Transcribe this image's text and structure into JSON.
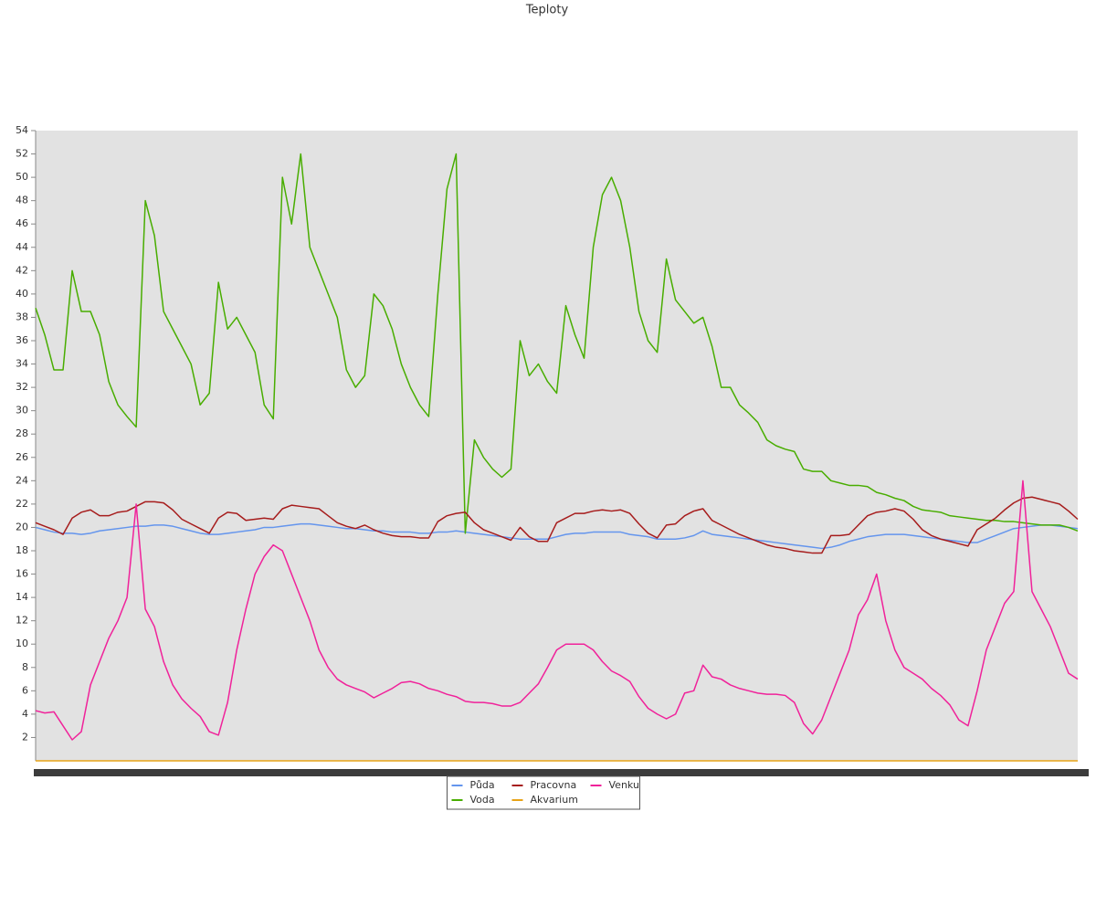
{
  "chart_data": {
    "type": "line",
    "title": "Teploty",
    "categories": [
      null,
      null,
      null,
      null,
      null,
      null,
      null,
      null,
      null,
      null,
      null,
      null,
      null,
      null,
      null,
      null,
      null,
      null,
      null,
      null,
      null,
      null,
      null,
      null,
      null,
      null,
      null,
      null,
      null,
      null,
      null,
      null,
      null,
      null,
      null,
      null,
      null,
      null,
      null,
      null,
      null,
      null,
      null,
      null,
      null,
      null,
      null,
      null,
      null,
      null,
      null,
      null,
      null,
      null,
      null,
      null,
      null,
      null,
      null,
      null,
      null,
      null,
      null,
      null,
      null,
      null,
      null,
      null,
      null,
      null,
      null,
      null,
      null,
      null,
      null,
      null,
      null,
      null,
      null,
      null,
      null,
      null,
      null,
      null,
      null,
      null,
      null,
      null,
      null,
      null,
      null,
      null,
      null,
      null,
      null,
      null,
      null,
      null,
      null,
      null,
      null,
      null,
      null,
      null,
      null,
      null,
      null,
      null,
      null,
      null,
      null,
      null,
      null,
      null,
      null
    ],
    "ylim": [
      0,
      54
    ],
    "yticks": [
      2,
      4,
      6,
      8,
      10,
      12,
      14,
      16,
      18,
      20,
      22,
      24,
      26,
      28,
      30,
      32,
      34,
      36,
      38,
      40,
      42,
      44,
      46,
      48,
      50,
      52,
      54
    ],
    "grid": false,
    "legend": "bottom",
    "series": [
      {
        "name": "Půda",
        "color": "#6495ed",
        "values": [
          20.0,
          19.8,
          19.6,
          19.5,
          19.5,
          19.4,
          19.5,
          19.7,
          19.8,
          19.9,
          20.0,
          20.1,
          20.1,
          20.2,
          20.2,
          20.1,
          19.9,
          19.7,
          19.5,
          19.4,
          19.4,
          19.5,
          19.6,
          19.7,
          19.8,
          20.0,
          20.0,
          20.1,
          20.2,
          20.3,
          20.3,
          20.2,
          20.1,
          20.0,
          19.9,
          19.9,
          19.8,
          19.7,
          19.7,
          19.6,
          19.6,
          19.6,
          19.5,
          19.5,
          19.6,
          19.6,
          19.7,
          19.6,
          19.5,
          19.4,
          19.3,
          19.2,
          19.1,
          19.0,
          19.0,
          19.0,
          19.0,
          19.2,
          19.4,
          19.5,
          19.5,
          19.6,
          19.6,
          19.6,
          19.6,
          19.4,
          19.3,
          19.2,
          19.0,
          19.0,
          19.0,
          19.1,
          19.3,
          19.7,
          19.4,
          19.3,
          19.2,
          19.1,
          19.0,
          18.9,
          18.8,
          18.7,
          18.6,
          18.5,
          18.4,
          18.3,
          18.2,
          18.3,
          18.5,
          18.8,
          19.0,
          19.2,
          19.3,
          19.4,
          19.4,
          19.4,
          19.3,
          19.2,
          19.1,
          19.0,
          18.9,
          18.8,
          18.7,
          18.7,
          19.0,
          19.3,
          19.6,
          19.9,
          20.0,
          20.1,
          20.2,
          20.2,
          20.1,
          20.0,
          19.9
        ]
      },
      {
        "name": "Voda",
        "color": "#48ad00",
        "values": [
          38.8,
          36.5,
          33.5,
          33.5,
          42,
          38.5,
          38.5,
          36.5,
          32.5,
          30.5,
          29.5,
          28.6,
          48,
          45,
          38.5,
          37,
          35.5,
          34,
          30.5,
          31.5,
          41,
          37,
          38,
          36.5,
          35,
          30.5,
          29.3,
          50,
          46,
          52,
          44,
          42,
          40,
          38,
          33.5,
          32,
          33,
          40,
          39,
          37,
          34,
          32,
          30.5,
          29.5,
          40,
          49,
          52,
          19.5,
          27.5,
          26,
          25,
          24.3,
          25,
          36,
          33,
          34,
          32.5,
          31.5,
          39,
          36.5,
          34.5,
          44,
          48.5,
          50,
          48,
          44,
          38.5,
          36,
          35,
          43,
          39.5,
          38.5,
          37.5,
          38,
          35.5,
          32,
          32,
          30.5,
          29.8,
          29,
          27.5,
          27,
          26.7,
          26.5,
          25,
          24.8,
          24.8,
          24,
          23.8,
          23.6,
          23.6,
          23.5,
          23,
          22.8,
          22.5,
          22.3,
          21.8,
          21.5,
          21.4,
          21.3,
          21,
          20.9,
          20.8,
          20.7,
          20.6,
          20.6,
          20.5,
          20.5,
          20.4,
          20.3,
          20.2,
          20.2,
          20.2,
          20,
          19.7
        ]
      },
      {
        "name": "Pracovna",
        "color": "#a61c1c",
        "values": [
          20.4,
          20.1,
          19.8,
          19.4,
          20.8,
          21.3,
          21.5,
          21,
          21,
          21.3,
          21.4,
          21.8,
          22.2,
          22.2,
          22.1,
          21.5,
          20.7,
          20.3,
          19.9,
          19.5,
          20.8,
          21.3,
          21.2,
          20.6,
          20.7,
          20.8,
          20.7,
          21.6,
          21.9,
          21.8,
          21.7,
          21.6,
          21,
          20.4,
          20.1,
          19.9,
          20.2,
          19.8,
          19.5,
          19.3,
          19.2,
          19.2,
          19.1,
          19.1,
          20.5,
          21,
          21.2,
          21.3,
          20.4,
          19.8,
          19.5,
          19.2,
          18.9,
          20,
          19.2,
          18.8,
          18.8,
          20.4,
          20.8,
          21.2,
          21.2,
          21.4,
          21.5,
          21.4,
          21.5,
          21.2,
          20.3,
          19.5,
          19.1,
          20.2,
          20.3,
          21,
          21.4,
          21.6,
          20.6,
          20.2,
          19.8,
          19.4,
          19.1,
          18.8,
          18.5,
          18.3,
          18.2,
          18,
          17.9,
          17.8,
          17.8,
          19.3,
          19.3,
          19.4,
          20.2,
          21,
          21.3,
          21.4,
          21.6,
          21.4,
          20.7,
          19.8,
          19.3,
          19,
          18.8,
          18.6,
          18.4,
          19.8,
          20.3,
          20.8,
          21.5,
          22.1,
          22.5,
          22.6,
          22.4,
          22.2,
          22,
          21.4,
          20.7
        ]
      },
      {
        "name": "Akvarium",
        "color": "#e8a317",
        "values": [
          0,
          0,
          0,
          0,
          0,
          0,
          0,
          0,
          0,
          0,
          0,
          0,
          0,
          0,
          0,
          0,
          0,
          0,
          0,
          0,
          0,
          0,
          0,
          0,
          0,
          0,
          0,
          0,
          0,
          0,
          0,
          0,
          0,
          0,
          0,
          0,
          0,
          0,
          0,
          0,
          0,
          0,
          0,
          0,
          0,
          0,
          0,
          0,
          0,
          0,
          0,
          0,
          0,
          0,
          0,
          0,
          0,
          0,
          0,
          0,
          0,
          0,
          0,
          0,
          0,
          0,
          0,
          0,
          0,
          0,
          0,
          0,
          0,
          0,
          0,
          0,
          0,
          0,
          0,
          0,
          0,
          0,
          0,
          0,
          0,
          0,
          0,
          0,
          0,
          0,
          0,
          0,
          0,
          0,
          0,
          0,
          0,
          0,
          0,
          0,
          0,
          0,
          0,
          0,
          0,
          0,
          0,
          0,
          0,
          0,
          0,
          0,
          0,
          0,
          0
        ]
      },
      {
        "name": "Venku",
        "color": "#f0229a",
        "values": [
          4.3,
          4.1,
          4.2,
          3,
          1.8,
          2.5,
          6.5,
          8.5,
          10.5,
          12,
          14,
          22,
          13,
          11.5,
          8.5,
          6.5,
          5.3,
          4.5,
          3.8,
          2.5,
          2.2,
          5,
          9.5,
          13,
          16,
          17.5,
          18.5,
          18,
          16,
          14,
          12,
          9.5,
          8,
          7,
          6.5,
          6.2,
          5.9,
          5.4,
          5.8,
          6.2,
          6.7,
          6.8,
          6.6,
          6.2,
          6,
          5.7,
          5.5,
          5.1,
          5,
          5,
          4.9,
          4.7,
          4.7,
          5,
          5.8,
          6.6,
          8,
          9.5,
          10,
          10,
          10,
          9.5,
          8.5,
          7.7,
          7.3,
          6.8,
          5.5,
          4.5,
          4,
          3.6,
          4,
          5.8,
          6,
          8.2,
          7.2,
          7,
          6.5,
          6.2,
          6,
          5.8,
          5.7,
          5.7,
          5.6,
          5,
          3.2,
          2.3,
          3.5,
          5.5,
          7.5,
          9.5,
          12.5,
          13.8,
          16,
          12,
          9.5,
          8,
          7.5,
          7,
          6.2,
          5.6,
          4.8,
          3.5,
          3,
          6,
          9.5,
          11.5,
          13.5,
          14.5,
          24,
          14.5,
          13,
          11.5,
          9.5,
          7.5,
          7
        ]
      }
    ]
  }
}
